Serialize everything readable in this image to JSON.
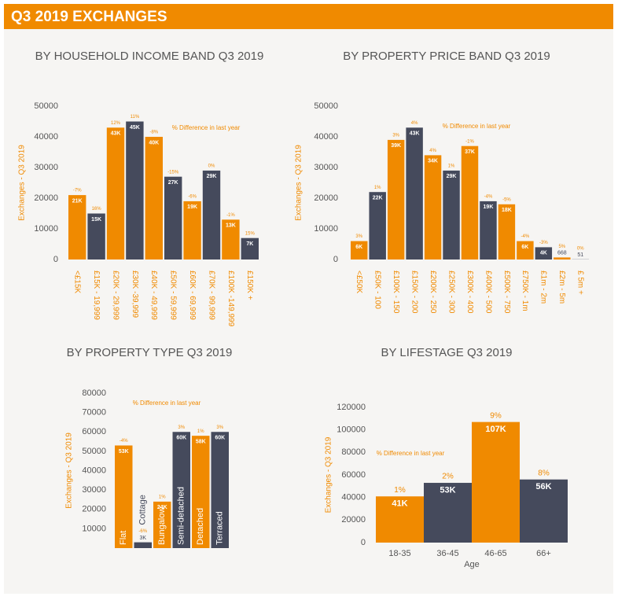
{
  "header": {
    "title": "Q3 2019 EXCHANGES"
  },
  "chart_data": [
    {
      "type": "bar",
      "title": "BY HOUSEHOLD INCOME BAND Q3 2019",
      "y_label": "Exchanges - Q3 2019",
      "annotation": "% Difference in last year",
      "categories": [
        "<£15K",
        "£15K - 19,999",
        "£20K - 29,999",
        "£30K -39,999",
        "£40K - 49,999",
        "£50K - 59,999",
        "£60K - 69,999",
        "£70K - 99,999",
        "£100K -149,999",
        "£150K +"
      ],
      "values": [
        21000,
        15000,
        43000,
        45000,
        40000,
        27000,
        19000,
        29000,
        13000,
        7000
      ],
      "value_labels": [
        "21K",
        "15K",
        "43K",
        "45K",
        "40K",
        "27K",
        "19K",
        "29K",
        "13K",
        "7K"
      ],
      "change_labels": [
        "-7%",
        "16%",
        "12%",
        "11%",
        "-8%",
        "-15%",
        "-6%",
        "0%",
        "-1%",
        "15%"
      ],
      "colors": [
        "#f08a00",
        "#454a5c",
        "#f08a00",
        "#454a5c",
        "#f08a00",
        "#454a5c",
        "#f08a00",
        "#454a5c",
        "#f08a00",
        "#454a5c"
      ],
      "ylim": [
        0,
        50000
      ],
      "yticks": [
        0,
        10000,
        20000,
        30000,
        40000,
        50000
      ]
    },
    {
      "type": "bar",
      "title": "BY PROPERTY PRICE BAND Q3 2019",
      "y_label": "Exchanges - Q3 2019",
      "annotation": "% Difference in last year",
      "categories": [
        "<£50K",
        "£50K - 100",
        "£100K - 150",
        "£150K - 200",
        "£200K - 250",
        "£250K - 300",
        "£300K - 400",
        "£400K - 500",
        "£500K - 750",
        "£750K - 1m",
        "£1m - 2m",
        "£2m - 5m",
        "£ 5m +"
      ],
      "values": [
        6000,
        22000,
        39000,
        43000,
        34000,
        29000,
        37000,
        19000,
        18000,
        6000,
        4000,
        668,
        51
      ],
      "value_labels": [
        "6K",
        "22K",
        "39K",
        "43K",
        "34K",
        "29K",
        "37K",
        "19K",
        "18K",
        "6K",
        "4K",
        "668",
        "51"
      ],
      "change_labels": [
        "3%",
        "1%",
        "3%",
        "4%",
        "4%",
        "1%",
        "-1%",
        "-4%",
        "-5%",
        "-4%",
        "-3%",
        "5%",
        "0%"
      ],
      "colors": [
        "#f08a00",
        "#454a5c",
        "#f08a00",
        "#454a5c",
        "#f08a00",
        "#454a5c",
        "#f08a00",
        "#454a5c",
        "#f08a00",
        "#f08a00",
        "#454a5c",
        "#f08a00",
        "#454a5c"
      ],
      "ylim": [
        0,
        50000
      ],
      "yticks": [
        0,
        10000,
        20000,
        30000,
        40000,
        50000
      ]
    },
    {
      "type": "bar",
      "title": "BY PROPERTY TYPE Q3 2019",
      "y_label": "Exchanges - Q3 2019",
      "annotation": "% Difference in last year",
      "categories": [
        "Flat",
        "Cottage",
        "Bungalow",
        "Semi-detached",
        "Detached",
        "Terraced"
      ],
      "values": [
        53000,
        3000,
        24000,
        60000,
        58000,
        60000
      ],
      "value_labels": [
        "53K",
        "3K",
        "24K",
        "60K",
        "58K",
        "60K"
      ],
      "change_labels": [
        "-4%",
        "-6%",
        "1%",
        "3%",
        "1%",
        "3%"
      ],
      "colors": [
        "#f08a00",
        "#454a5c",
        "#f08a00",
        "#454a5c",
        "#f08a00",
        "#454a5c"
      ],
      "ylim": [
        0,
        80000
      ],
      "yticks": [
        10000,
        20000,
        30000,
        40000,
        50000,
        60000,
        70000,
        80000
      ]
    },
    {
      "type": "bar",
      "title": "BY LIFESTAGE Q3 2019",
      "y_label": "Exchanges - Q3 2019",
      "annotation": "% Difference in last year",
      "x_label": "Age",
      "categories": [
        "18-35",
        "36-45",
        "46-65",
        "66+"
      ],
      "values": [
        41000,
        53000,
        107000,
        56000
      ],
      "value_labels": [
        "41K",
        "53K",
        "107K",
        "56K"
      ],
      "change_labels": [
        "1%",
        "2%",
        "9%",
        "8%"
      ],
      "colors": [
        "#f08a00",
        "#454a5c",
        "#f08a00",
        "#454a5c"
      ],
      "ylim": [
        0,
        120000
      ],
      "yticks": [
        0,
        20000,
        40000,
        60000,
        80000,
        100000,
        120000
      ]
    }
  ]
}
